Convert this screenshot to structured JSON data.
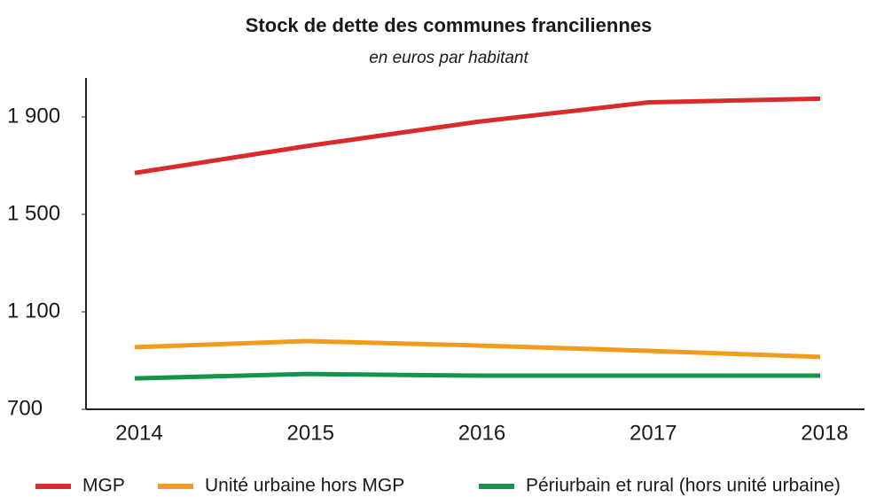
{
  "chart_data": {
    "type": "line",
    "title": "Stock de dette des communes franciliennes",
    "subtitle": "en euros par habitant",
    "categories": [
      "2014",
      "2015",
      "2016",
      "2017",
      "2018"
    ],
    "series": [
      {
        "name": "MGP",
        "color": "#d92b2b",
        "values": [
          1670,
          1780,
          1880,
          1960,
          1975
        ]
      },
      {
        "name": "Unité urbaine hors MGP",
        "color": "#f39b1c",
        "values": [
          955,
          980,
          962,
          940,
          915
        ]
      },
      {
        "name": "Périurbain et rural (hors unité urbaine)",
        "color": "#14944a",
        "values": [
          827,
          845,
          838,
          838,
          838
        ]
      }
    ],
    "ylim": [
      700,
      2060
    ],
    "yticks": [
      700,
      {
        "value": 1100,
        "label": "1 100"
      },
      {
        "value": 1500,
        "label": "1 500"
      },
      {
        "value": 1900,
        "label": "1 900"
      }
    ],
    "grid": false,
    "legend": "bottom"
  }
}
